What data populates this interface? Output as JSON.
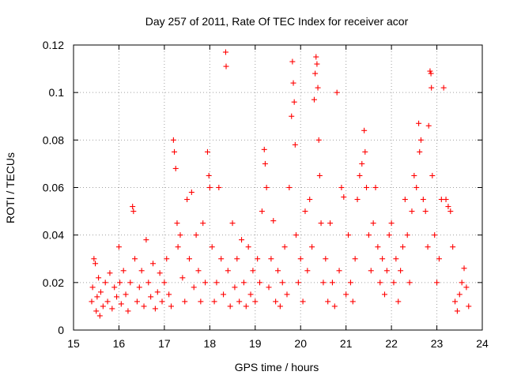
{
  "chart_data": {
    "type": "scatter",
    "title": "Day 257 of 2011, Rate Of TEC Index for receiver acor",
    "xlabel": "GPS time / hours",
    "ylabel": "ROTI / TECUs",
    "xlim": [
      15,
      24
    ],
    "ylim": [
      0,
      0.12
    ],
    "xticks": [
      15,
      16,
      17,
      18,
      19,
      20,
      21,
      22,
      23,
      24
    ],
    "yticks": [
      0,
      0.02,
      0.04,
      0.06,
      0.08,
      0.1,
      0.12
    ],
    "ytick_labels": [
      "0",
      "0.02",
      "0.04",
      "0.06",
      "0.08",
      "0.1",
      "0.12"
    ],
    "grid": true,
    "marker": "+",
    "color": "#ff0000",
    "points": [
      [
        15.4,
        0.012
      ],
      [
        15.42,
        0.018
      ],
      [
        15.45,
        0.03
      ],
      [
        15.48,
        0.028
      ],
      [
        15.5,
        0.008
      ],
      [
        15.52,
        0.014
      ],
      [
        15.55,
        0.022
      ],
      [
        15.58,
        0.006
      ],
      [
        15.6,
        0.016
      ],
      [
        15.65,
        0.01
      ],
      [
        15.7,
        0.02
      ],
      [
        15.75,
        0.012
      ],
      [
        15.8,
        0.024
      ],
      [
        15.85,
        0.009
      ],
      [
        15.9,
        0.018
      ],
      [
        15.95,
        0.014
      ],
      [
        16.0,
        0.035
      ],
      [
        16.02,
        0.02
      ],
      [
        16.05,
        0.011
      ],
      [
        16.1,
        0.025
      ],
      [
        16.15,
        0.015
      ],
      [
        16.2,
        0.008
      ],
      [
        16.25,
        0.02
      ],
      [
        16.3,
        0.052
      ],
      [
        16.32,
        0.05
      ],
      [
        16.35,
        0.03
      ],
      [
        16.4,
        0.012
      ],
      [
        16.45,
        0.018
      ],
      [
        16.5,
        0.025
      ],
      [
        16.55,
        0.01
      ],
      [
        16.6,
        0.038
      ],
      [
        16.65,
        0.02
      ],
      [
        16.7,
        0.014
      ],
      [
        16.75,
        0.028
      ],
      [
        16.8,
        0.009
      ],
      [
        16.85,
        0.016
      ],
      [
        16.9,
        0.024
      ],
      [
        16.95,
        0.012
      ],
      [
        17.0,
        0.02
      ],
      [
        17.05,
        0.03
      ],
      [
        17.1,
        0.015
      ],
      [
        17.15,
        0.01
      ],
      [
        17.2,
        0.08
      ],
      [
        17.22,
        0.075
      ],
      [
        17.25,
        0.068
      ],
      [
        17.28,
        0.045
      ],
      [
        17.3,
        0.035
      ],
      [
        17.35,
        0.04
      ],
      [
        17.4,
        0.022
      ],
      [
        17.45,
        0.012
      ],
      [
        17.5,
        0.055
      ],
      [
        17.55,
        0.03
      ],
      [
        17.6,
        0.058
      ],
      [
        17.65,
        0.018
      ],
      [
        17.7,
        0.04
      ],
      [
        17.75,
        0.025
      ],
      [
        17.8,
        0.012
      ],
      [
        17.85,
        0.045
      ],
      [
        17.9,
        0.02
      ],
      [
        17.95,
        0.075
      ],
      [
        17.98,
        0.065
      ],
      [
        18.0,
        0.06
      ],
      [
        18.05,
        0.035
      ],
      [
        18.1,
        0.012
      ],
      [
        18.15,
        0.02
      ],
      [
        18.2,
        0.06
      ],
      [
        18.25,
        0.03
      ],
      [
        18.3,
        0.015
      ],
      [
        18.35,
        0.117
      ],
      [
        18.36,
        0.111
      ],
      [
        18.4,
        0.025
      ],
      [
        18.45,
        0.01
      ],
      [
        18.5,
        0.045
      ],
      [
        18.55,
        0.018
      ],
      [
        18.6,
        0.03
      ],
      [
        18.65,
        0.012
      ],
      [
        18.7,
        0.038
      ],
      [
        18.75,
        0.02
      ],
      [
        18.8,
        0.01
      ],
      [
        18.85,
        0.035
      ],
      [
        18.9,
        0.015
      ],
      [
        18.95,
        0.025
      ],
      [
        19.0,
        0.012
      ],
      [
        19.05,
        0.03
      ],
      [
        19.1,
        0.02
      ],
      [
        19.15,
        0.05
      ],
      [
        19.2,
        0.076
      ],
      [
        19.22,
        0.07
      ],
      [
        19.25,
        0.06
      ],
      [
        19.3,
        0.018
      ],
      [
        19.35,
        0.03
      ],
      [
        19.4,
        0.046
      ],
      [
        19.45,
        0.012
      ],
      [
        19.5,
        0.025
      ],
      [
        19.55,
        0.01
      ],
      [
        19.6,
        0.02
      ],
      [
        19.65,
        0.035
      ],
      [
        19.7,
        0.015
      ],
      [
        19.75,
        0.06
      ],
      [
        19.8,
        0.09
      ],
      [
        19.82,
        0.113
      ],
      [
        19.84,
        0.104
      ],
      [
        19.86,
        0.096
      ],
      [
        19.88,
        0.078
      ],
      [
        19.9,
        0.04
      ],
      [
        19.95,
        0.02
      ],
      [
        20.0,
        0.03
      ],
      [
        20.05,
        0.012
      ],
      [
        20.1,
        0.05
      ],
      [
        20.15,
        0.025
      ],
      [
        20.2,
        0.055
      ],
      [
        20.25,
        0.035
      ],
      [
        20.3,
        0.097
      ],
      [
        20.32,
        0.108
      ],
      [
        20.34,
        0.115
      ],
      [
        20.36,
        0.112
      ],
      [
        20.38,
        0.102
      ],
      [
        20.4,
        0.08
      ],
      [
        20.42,
        0.065
      ],
      [
        20.45,
        0.045
      ],
      [
        20.5,
        0.02
      ],
      [
        20.55,
        0.03
      ],
      [
        20.6,
        0.012
      ],
      [
        20.65,
        0.045
      ],
      [
        20.7,
        0.02
      ],
      [
        20.75,
        0.01
      ],
      [
        20.8,
        0.1
      ],
      [
        20.85,
        0.025
      ],
      [
        20.9,
        0.06
      ],
      [
        20.95,
        0.056
      ],
      [
        21.0,
        0.015
      ],
      [
        21.05,
        0.04
      ],
      [
        21.1,
        0.02
      ],
      [
        21.15,
        0.012
      ],
      [
        21.2,
        0.03
      ],
      [
        21.25,
        0.055
      ],
      [
        21.3,
        0.065
      ],
      [
        21.35,
        0.07
      ],
      [
        21.4,
        0.084
      ],
      [
        21.42,
        0.075
      ],
      [
        21.45,
        0.06
      ],
      [
        21.5,
        0.04
      ],
      [
        21.55,
        0.025
      ],
      [
        21.6,
        0.045
      ],
      [
        21.65,
        0.06
      ],
      [
        21.7,
        0.035
      ],
      [
        21.75,
        0.02
      ],
      [
        21.8,
        0.03
      ],
      [
        21.85,
        0.015
      ],
      [
        21.9,
        0.025
      ],
      [
        21.95,
        0.04
      ],
      [
        22.0,
        0.045
      ],
      [
        22.05,
        0.02
      ],
      [
        22.1,
        0.03
      ],
      [
        22.15,
        0.012
      ],
      [
        22.2,
        0.025
      ],
      [
        22.25,
        0.035
      ],
      [
        22.3,
        0.055
      ],
      [
        22.35,
        0.04
      ],
      [
        22.4,
        0.02
      ],
      [
        22.45,
        0.05
      ],
      [
        22.5,
        0.065
      ],
      [
        22.55,
        0.06
      ],
      [
        22.6,
        0.087
      ],
      [
        22.62,
        0.075
      ],
      [
        22.65,
        0.08
      ],
      [
        22.7,
        0.055
      ],
      [
        22.75,
        0.05
      ],
      [
        22.8,
        0.035
      ],
      [
        22.82,
        0.086
      ],
      [
        22.85,
        0.109
      ],
      [
        22.87,
        0.108
      ],
      [
        22.88,
        0.102
      ],
      [
        22.9,
        0.065
      ],
      [
        22.95,
        0.04
      ],
      [
        23.0,
        0.02
      ],
      [
        23.05,
        0.03
      ],
      [
        23.1,
        0.055
      ],
      [
        23.15,
        0.102
      ],
      [
        23.2,
        0.055
      ],
      [
        23.25,
        0.052
      ],
      [
        23.3,
        0.05
      ],
      [
        23.35,
        0.035
      ],
      [
        23.4,
        0.012
      ],
      [
        23.45,
        0.008
      ],
      [
        23.5,
        0.015
      ],
      [
        23.55,
        0.02
      ],
      [
        23.6,
        0.026
      ],
      [
        23.65,
        0.018
      ],
      [
        23.7,
        0.01
      ]
    ]
  }
}
